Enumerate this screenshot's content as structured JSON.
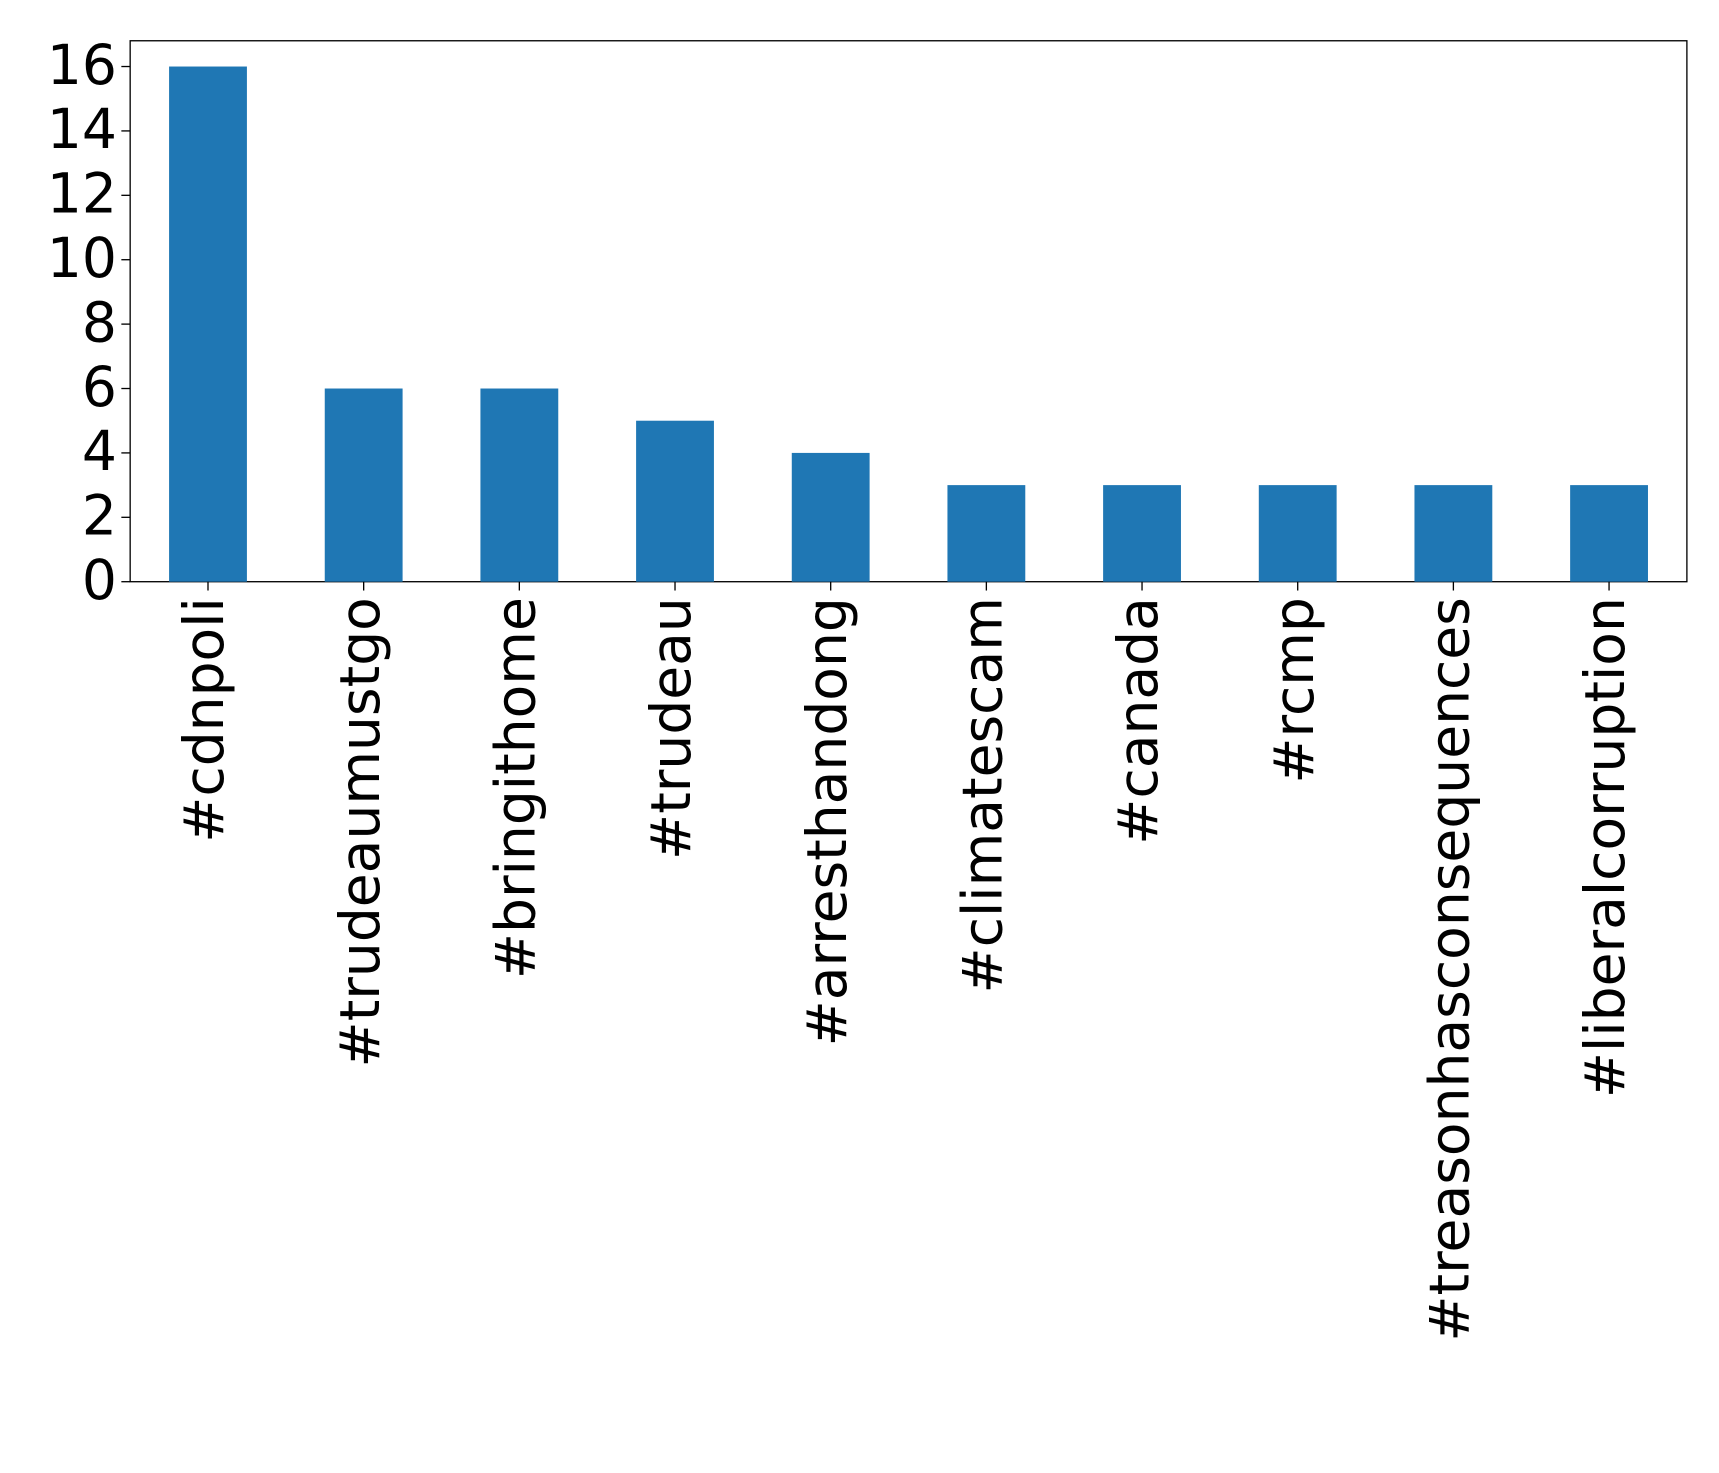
{
  "chart_data": {
    "type": "bar",
    "categories": [
      "#cdnpoli",
      "#trudeaumustgo",
      "#bringithome",
      "#trudeau",
      "#arresthandong",
      "#climatescam",
      "#canada",
      "#rcmp",
      "#treasonhasconsequences",
      "#liberalcorruption"
    ],
    "values": [
      16,
      6,
      6,
      5,
      4,
      3,
      3,
      3,
      3,
      3
    ],
    "color": "#1f77b4",
    "ylim": [
      0,
      16.8
    ],
    "yticks": [
      0,
      2,
      4,
      6,
      8,
      10,
      12,
      14,
      16
    ],
    "grid": false
  }
}
